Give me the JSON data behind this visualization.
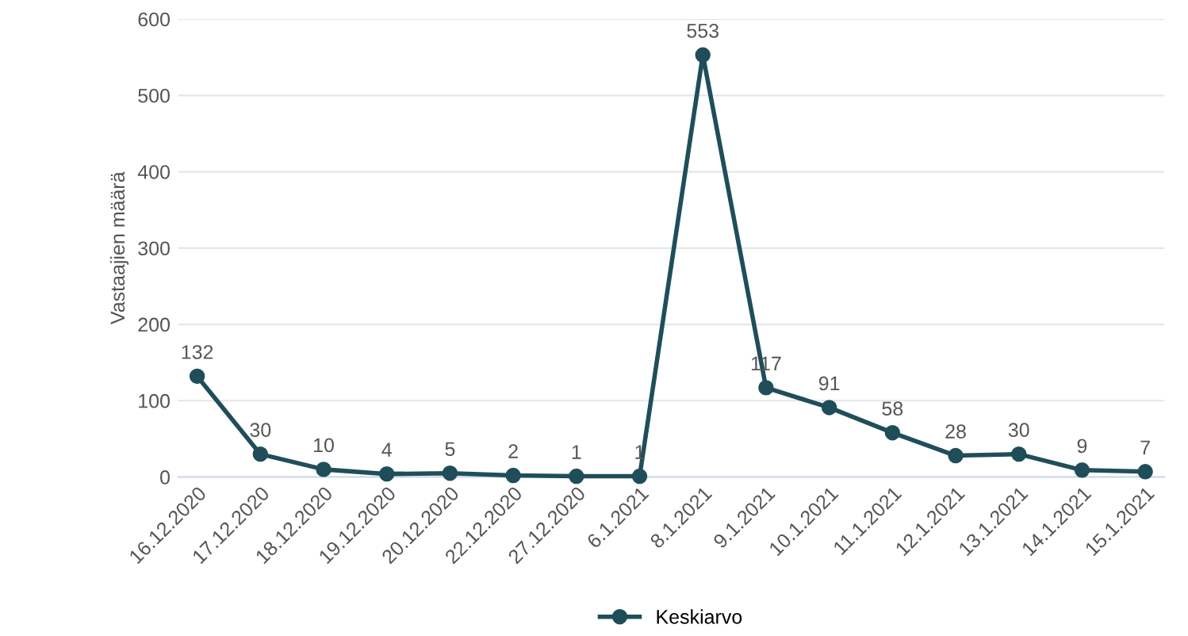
{
  "chart_data": {
    "type": "line",
    "ylabel": "Vastaajien määrä",
    "categories": [
      "16.12.2020",
      "17.12.2020",
      "18.12.2020",
      "19.12.2020",
      "20.12.2020",
      "22.12.2020",
      "27.12.2020",
      "6.1.2021",
      "8.1.2021",
      "9.1.2021",
      "10.1.2021",
      "11.1.2021",
      "12.1.2021",
      "13.1.2021",
      "14.1.2021",
      "15.1.2021"
    ],
    "series": [
      {
        "name": "Keskiarvo",
        "color": "#1f4e5a",
        "values": [
          132,
          30,
          10,
          4,
          5,
          2,
          1,
          1,
          553,
          117,
          91,
          58,
          28,
          30,
          9,
          7
        ]
      }
    ],
    "ylim": [
      0,
      600
    ],
    "yticks": [
      0,
      100,
      200,
      300,
      400,
      500,
      600
    ],
    "grid": "y",
    "legend": "bottom",
    "marker": "circle",
    "data_labels": true
  }
}
